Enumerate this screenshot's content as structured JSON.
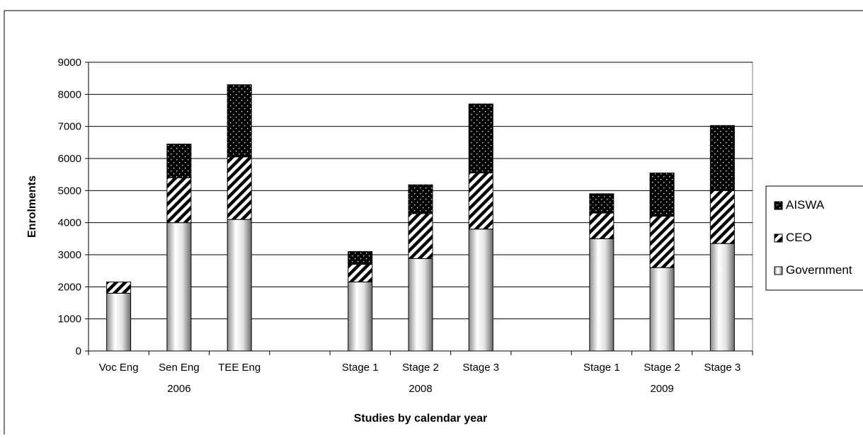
{
  "chart_data": {
    "type": "bar",
    "stacked": true,
    "ylabel": "Enrolments",
    "xlabel": "Studies by calendar year",
    "ylim": [
      0,
      9000
    ],
    "yticks": [
      0,
      1000,
      2000,
      3000,
      4000,
      5000,
      6000,
      7000,
      8000,
      9000
    ],
    "grid": true,
    "legend_position": "right",
    "slots": [
      {
        "label": "Voc Eng",
        "year": ""
      },
      {
        "label": "Sen Eng",
        "year": "2006"
      },
      {
        "label": "TEE Eng",
        "year": ""
      },
      {
        "label": "",
        "year": ""
      },
      {
        "label": "Stage 1",
        "year": ""
      },
      {
        "label": "Stage 2",
        "year": "2008"
      },
      {
        "label": "Stage 3",
        "year": ""
      },
      {
        "label": "",
        "year": ""
      },
      {
        "label": "Stage 1",
        "year": ""
      },
      {
        "label": "Stage 2",
        "year": "2009"
      },
      {
        "label": "Stage 3",
        "year": ""
      }
    ],
    "series": [
      {
        "name": "Government",
        "pattern": "gradient-grey",
        "values": [
          1800,
          4000,
          4100,
          null,
          2150,
          2880,
          3800,
          null,
          3500,
          2600,
          3350
        ]
      },
      {
        "name": "CEO",
        "pattern": "diagonal-hatch",
        "values": [
          350,
          1400,
          1950,
          null,
          550,
          1400,
          1750,
          null,
          800,
          1600,
          1650
        ]
      },
      {
        "name": "AISWA",
        "pattern": "black-dotted",
        "values": [
          0,
          1050,
          2250,
          null,
          400,
          900,
          2150,
          null,
          600,
          1350,
          2030
        ]
      }
    ],
    "legend_order": [
      "AISWA",
      "CEO",
      "Government"
    ]
  }
}
